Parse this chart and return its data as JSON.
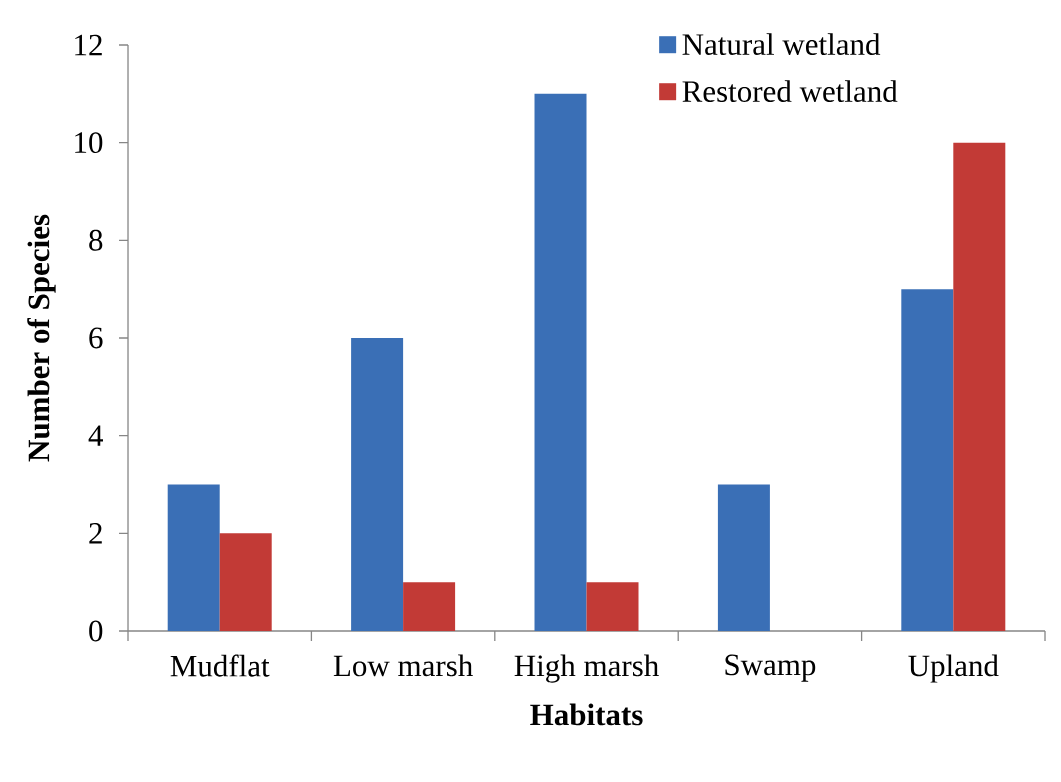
{
  "chart_data": {
    "type": "bar",
    "categories": [
      "Mudflat",
      "Low marsh",
      "High marsh",
      "Swamp",
      "Upland"
    ],
    "series": [
      {
        "name": "Natural wetland",
        "color": "#3a6fb6",
        "values": [
          3,
          6,
          11,
          3,
          7
        ]
      },
      {
        "name": "Restored wetland",
        "color": "#c23a36",
        "values": [
          2,
          1,
          1,
          0,
          10
        ]
      }
    ],
    "xlabel": "Habitats",
    "ylabel": "Number of Species",
    "ylim": [
      0,
      12
    ],
    "yticks": [
      0,
      2,
      4,
      6,
      8,
      10,
      12
    ],
    "legend": "top right"
  }
}
